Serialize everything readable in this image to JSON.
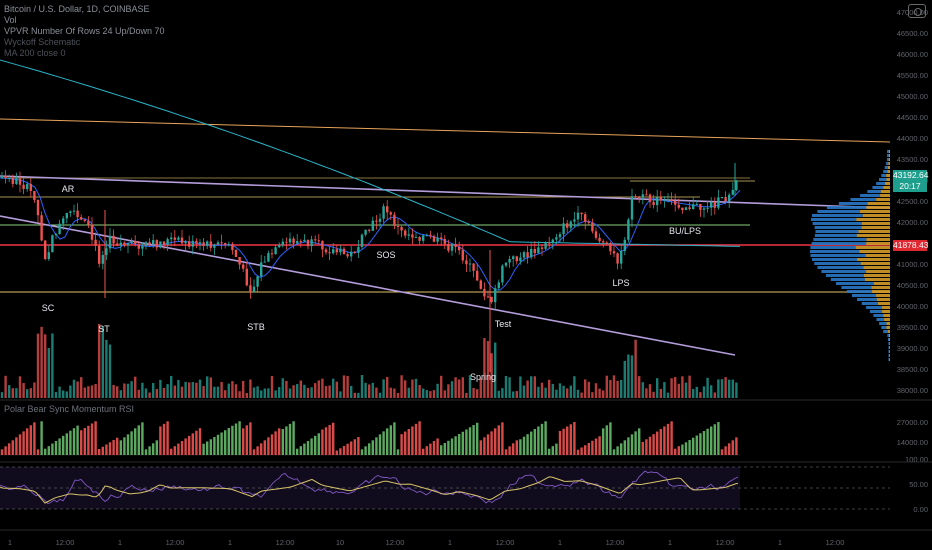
{
  "legend": {
    "symbol": "Bitcoin / U.S. Dollar, 1D, COINBASE",
    "line2": "Vol",
    "line3": "VPVR Number Of Rows 24 Up/Down 70",
    "line4": "Wyckoff Schematic",
    "line5": "MA 200 close 0"
  },
  "indicator_title": "Polar Bear Sync Momentum RSI",
  "price_tags": {
    "current": "43192.64",
    "countdown": "20:17",
    "red_level": "41878.43"
  },
  "colors": {
    "background": "#000000",
    "bull": "#26a69a",
    "bear": "#ef5350",
    "ma_cyan": "#2bb3c9",
    "ma_blue": "#2962ff",
    "trend_purple": "#b39ddb",
    "orange_line": "#e8a55b",
    "range_line": "#e0c36a",
    "green_line": "#8bd17c",
    "red_line": "#f23645",
    "vp_blue": "#2a78c8",
    "vp_gold": "#d49b2a",
    "rsi_line": "#7e57c2",
    "rsi_signal": "#d8c46a",
    "momentum_green": "#66bb6a",
    "momentum_red": "#ef5350"
  },
  "chart_data": {
    "type": "candlestick",
    "annotations": [
      "AR",
      "SC",
      "ST",
      "STB",
      "SOS",
      "Spring",
      "Test",
      "LPS",
      "BU/LPS"
    ],
    "ylim": [
      37800,
      47000
    ],
    "current_price": 43192.64,
    "level_price": 41878.43
  },
  "axis": {
    "price_ticks": [
      "47000.00",
      "46500.00",
      "46000.00",
      "45500.00",
      "45000.00",
      "44500.00",
      "44000.00",
      "43500.00",
      "43000.00",
      "42500.00",
      "42000.00",
      "41500.00",
      "41000.00",
      "40500.00",
      "40000.00",
      "39500.00",
      "39000.00",
      "38500.00",
      "38000.00"
    ],
    "time_ticks": [
      "1",
      "12:00",
      "1",
      "12:00",
      "1",
      "12:00",
      "10",
      "12:00",
      "1",
      "12:00",
      "1",
      "12:00",
      "1",
      "12:00",
      "1",
      "12:00"
    ],
    "osc_ticks": [
      "27000.00",
      "14000.00",
      "100.00",
      "50.00",
      "0.00"
    ]
  }
}
